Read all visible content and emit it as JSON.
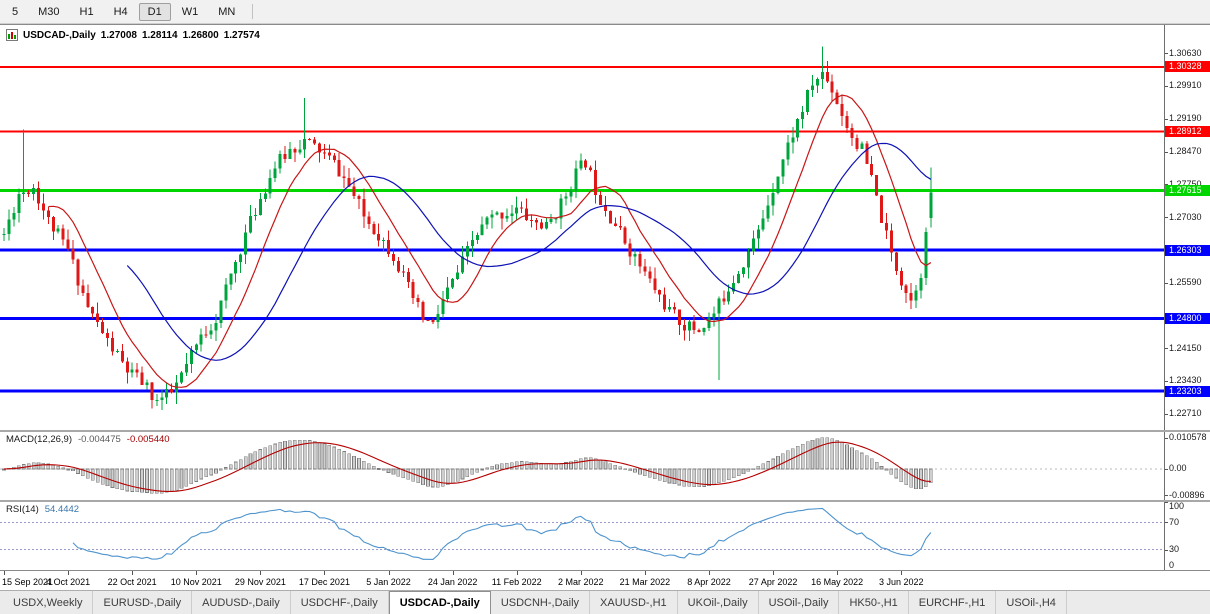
{
  "toolbar": {
    "timeframes": [
      "5",
      "M30",
      "H1",
      "H4",
      "D1",
      "W1",
      "MN"
    ],
    "active": "D1"
  },
  "chart": {
    "title": "USDCAD-,Daily",
    "ohlc": {
      "open": "1.27008",
      "high": "1.28114",
      "low": "1.26800",
      "close": "1.27574"
    }
  },
  "chart_data": {
    "type": "candlestick",
    "symbol": "USDCAD",
    "period": "Daily",
    "visible_ohlc": {
      "open": 1.27008,
      "high": 1.28114,
      "low": 1.268,
      "close": 1.27574
    },
    "num_candles": 189,
    "seed": 11,
    "candle_spacing": 4.93,
    "left_pad": 4,
    "price_axis": {
      "max": 1.3125,
      "min": 1.2235,
      "ticks": [
        "1.30630",
        "1.29910",
        "1.29190",
        "1.28470",
        "1.27750",
        "1.27030",
        "1.25590",
        "1.24150",
        "1.23430",
        "1.22710"
      ]
    },
    "hlines": [
      {
        "price": 1.30328,
        "label": "1.30328",
        "color": "#ff0000",
        "width": 2
      },
      {
        "price": 1.28912,
        "label": "1.28912",
        "color": "#ff0000",
        "width": 2
      },
      {
        "price": 1.27615,
        "label": "1.27615",
        "color": "#00d500",
        "width": 3
      },
      {
        "price": 1.26303,
        "label": "1.26303",
        "color": "#0000ff",
        "width": 3
      },
      {
        "price": 1.248,
        "label": "1.24800",
        "color": "#0000ff",
        "width": 3
      },
      {
        "price": 1.23203,
        "label": "1.23203",
        "color": "#0000ff",
        "width": 3
      }
    ],
    "moving_averages": [
      {
        "period": 10,
        "method": "sma",
        "color": "#c81616"
      },
      {
        "period": 26,
        "method": "sma",
        "color": "#0e12b4"
      }
    ],
    "candle_colors": {
      "up": "#00a43c",
      "down": "#e01717"
    },
    "keypoints": [
      [
        0,
        1.2665
      ],
      [
        3,
        1.2755
      ],
      [
        6,
        1.277
      ],
      [
        9,
        1.2695
      ],
      [
        13,
        1.263
      ],
      [
        17,
        1.2505
      ],
      [
        21,
        1.243
      ],
      [
        25,
        1.2365
      ],
      [
        28,
        1.234
      ],
      [
        31,
        1.23
      ],
      [
        34,
        1.2315
      ],
      [
        37,
        1.2375
      ],
      [
        40,
        1.244
      ],
      [
        43,
        1.248
      ],
      [
        46,
        1.2575
      ],
      [
        49,
        1.2665
      ],
      [
        52,
        1.2745
      ],
      [
        55,
        1.2815
      ],
      [
        58,
        1.285
      ],
      [
        61,
        1.287
      ],
      [
        64,
        1.285
      ],
      [
        67,
        1.282
      ],
      [
        70,
        1.277
      ],
      [
        73,
        1.2705
      ],
      [
        76,
        1.2665
      ],
      [
        79,
        1.262
      ],
      [
        82,
        1.2545
      ],
      [
        85,
        1.248
      ],
      [
        87,
        1.2465
      ],
      [
        89,
        1.252
      ],
      [
        92,
        1.258
      ],
      [
        95,
        1.265
      ],
      [
        98,
        1.2695
      ],
      [
        101,
        1.271
      ],
      [
        104,
        1.272
      ],
      [
        107,
        1.2695
      ],
      [
        110,
        1.268
      ],
      [
        113,
        1.273
      ],
      [
        116,
        1.28
      ],
      [
        118,
        1.2825
      ],
      [
        120,
        1.2765
      ],
      [
        123,
        1.2705
      ],
      [
        126,
        1.265
      ],
      [
        129,
        1.2595
      ],
      [
        132,
        1.2545
      ],
      [
        135,
        1.2495
      ],
      [
        138,
        1.2465
      ],
      [
        141,
        1.2455
      ],
      [
        144,
        1.249
      ],
      [
        147,
        1.255
      ],
      [
        150,
        1.2605
      ],
      [
        153,
        1.267
      ],
      [
        156,
        1.277
      ],
      [
        159,
        1.286
      ],
      [
        162,
        1.294
      ],
      [
        164,
        1.2995
      ],
      [
        166,
        1.302
      ],
      [
        168,
        1.2985
      ],
      [
        170,
        1.293
      ],
      [
        172,
        1.288
      ],
      [
        174,
        1.285
      ],
      [
        176,
        1.2785
      ],
      [
        178,
        1.27
      ],
      [
        180,
        1.262
      ],
      [
        182,
        1.2565
      ],
      [
        184,
        1.252
      ],
      [
        186,
        1.2585
      ],
      [
        187,
        1.266
      ],
      [
        188,
        1.27574
      ]
    ],
    "wick_events": [
      {
        "index": 4,
        "high": 1.2895
      },
      {
        "index": 31,
        "low": 1.2288
      },
      {
        "index": 61,
        "high": 1.2965
      },
      {
        "index": 145,
        "low": 1.2345
      },
      {
        "index": 166,
        "high": 1.3078
      }
    ],
    "x_axis_labels": [
      {
        "index": 0,
        "text": "15 Sep 2021"
      },
      {
        "index": 13,
        "text": "4 Oct 2021"
      },
      {
        "index": 26,
        "text": "22 Oct 2021"
      },
      {
        "index": 39,
        "text": "10 Nov 2021"
      },
      {
        "index": 52,
        "text": "29 Nov 2021"
      },
      {
        "index": 65,
        "text": "17 Dec 2021"
      },
      {
        "index": 78,
        "text": "5 Jan 2022"
      },
      {
        "index": 91,
        "text": "24 Jan 2022"
      },
      {
        "index": 104,
        "text": "11 Feb 2022"
      },
      {
        "index": 117,
        "text": "2 Mar 2022"
      },
      {
        "index": 130,
        "text": "21 Mar 2022"
      },
      {
        "index": 143,
        "text": "8 Apr 2022"
      },
      {
        "index": 156,
        "text": "27 Apr 2022"
      },
      {
        "index": 169,
        "text": "16 May 2022"
      },
      {
        "index": 182,
        "text": "3 Jun 2022"
      }
    ]
  },
  "macd": {
    "label": "MACD(12,26,9)",
    "value_main": "-0.004475",
    "value_signal": "-0.005440",
    "params": {
      "fast": 12,
      "slow": 26,
      "signal": 9
    },
    "axis": {
      "max": 0.0125,
      "min": -0.0105,
      "scale_max": 0.010578,
      "ticks": [
        {
          "value": 0.010578,
          "text": "0.010578"
        },
        {
          "value": 0,
          "text": "0.00"
        },
        {
          "value": -0.00896,
          "text": "-0.00896"
        }
      ]
    },
    "colors": {
      "histogram": "#cfcfcf",
      "histogram_stroke": "#7d7d7d",
      "signal": "#b40000"
    }
  },
  "rsi": {
    "label": "RSI(14)",
    "value": "54.4442",
    "period": 14,
    "color": "#4f94cd",
    "levels": [
      70,
      30
    ],
    "axis": {
      "max": 100,
      "min": 0,
      "ticks": [
        {
          "value": 100,
          "text": "100"
        },
        {
          "value": 70,
          "text": "70"
        },
        {
          "value": 30,
          "text": "30"
        },
        {
          "value": 0,
          "text": "0"
        }
      ]
    }
  },
  "tabs": {
    "items": [
      {
        "label": "USDX,Weekly",
        "active": false
      },
      {
        "label": "EURUSD-,Daily",
        "active": false
      },
      {
        "label": "AUDUSD-,Daily",
        "active": false
      },
      {
        "label": "USDCHF-,Daily",
        "active": false
      },
      {
        "label": "USDCAD-,Daily",
        "active": true
      },
      {
        "label": "USDCNH-,Daily",
        "active": false
      },
      {
        "label": "XAUUSD-,H1",
        "active": false
      },
      {
        "label": "UKOil-,Daily",
        "active": false
      },
      {
        "label": "USOil-,Daily",
        "active": false
      },
      {
        "label": "HK50-,H1",
        "active": false
      },
      {
        "label": "EURCHF-,H1",
        "active": false
      },
      {
        "label": "USOil-,H4",
        "active": false
      }
    ]
  }
}
